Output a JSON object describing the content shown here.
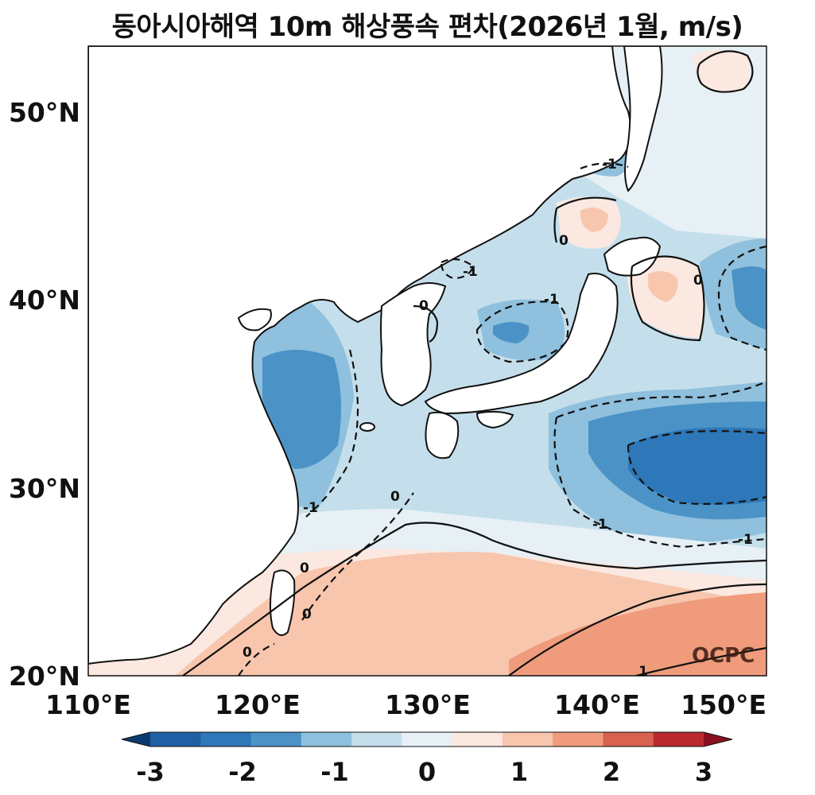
{
  "title": "동아시아해역 10m 해상풍속 편차(2026년 1월, m/s)",
  "watermark": "OCPC",
  "axes": {
    "lon_ticks": [
      "110°E",
      "120°E",
      "130°E",
      "140°E",
      "150°E"
    ],
    "lat_ticks": [
      "20°N",
      "30°N",
      "40°N",
      "50°N"
    ],
    "lon_range": [
      110,
      150
    ],
    "lat_range": [
      20,
      53.5
    ]
  },
  "colorbar": {
    "ticks": [
      "-3",
      "-2",
      "-1",
      "0",
      "1",
      "2",
      "3"
    ],
    "levels": [
      -3,
      -2.5,
      -2,
      -1.5,
      -1,
      -0.5,
      0,
      0.5,
      1,
      1.5,
      2,
      2.5,
      3
    ],
    "colors": [
      "#0d3a6e",
      "#1f5fa3",
      "#2e77b8",
      "#4b93c6",
      "#8fc0dd",
      "#c4dfeb",
      "#e6f0f5",
      "#fbe8e0",
      "#f8c6ad",
      "#ef9b7c",
      "#d86150",
      "#b92a2f",
      "#88101f"
    ],
    "extend": "both",
    "orientation": "horizontal"
  },
  "contour_labels": [
    "-1",
    "0",
    "-1",
    "0",
    "-1",
    "0",
    "-1",
    "-1",
    "-1",
    "0",
    "0",
    "0",
    "0",
    "0",
    "1",
    "-1"
  ],
  "regions": {
    "land_color": "#ffffff",
    "coast_color": "#111111"
  }
}
